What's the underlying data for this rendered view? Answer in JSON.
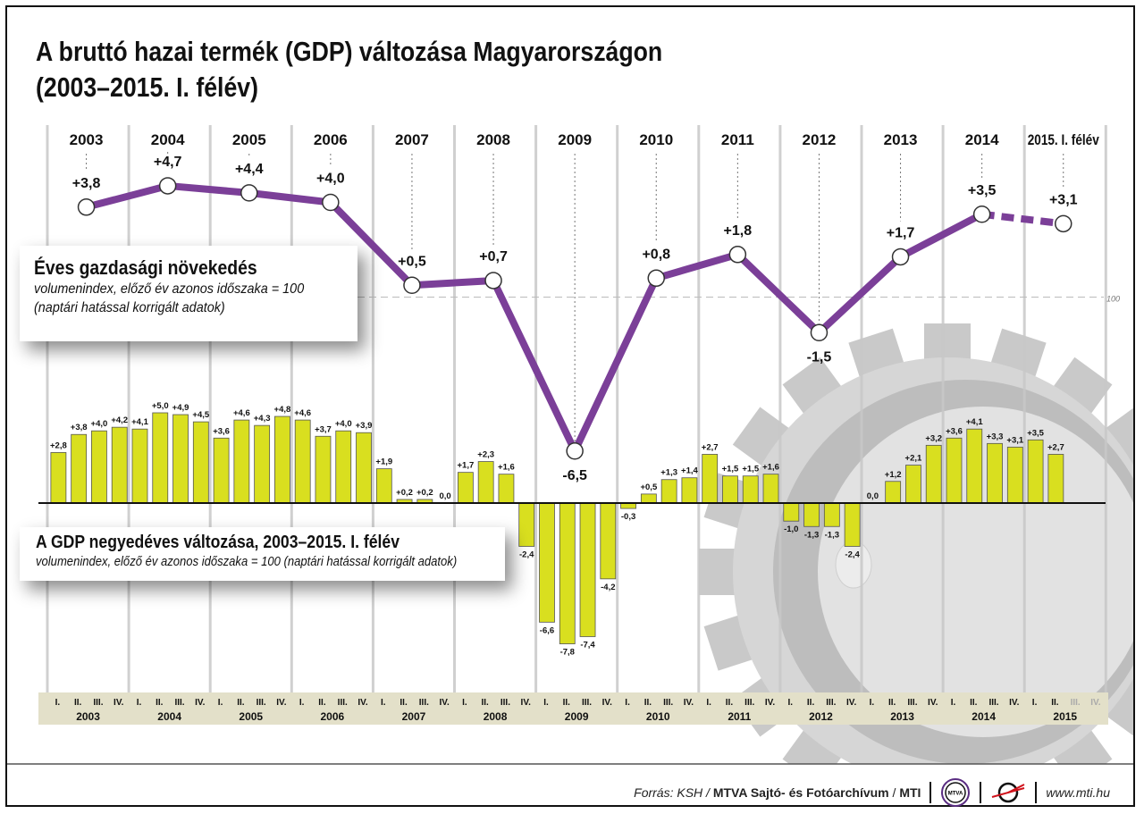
{
  "title_line1": "A bruttó hazai termék (GDP) változása Magyarországon",
  "title_line2": "(2003–2015. I. félév)",
  "annual_box": {
    "heading": "Éves gazdasági növekedés",
    "sub1": "volumenindex, előző év azonos időszaka = 100",
    "sub2": "(naptári hatással korrigált adatok)"
  },
  "quarterly_box": {
    "heading": "A GDP negyedéves változása, 2003–2015. I. félév",
    "sub": "volumenindex, előző év azonos időszaka = 100 (naptári hatással korrigált adatok)"
  },
  "reference_label": "100",
  "footer": {
    "source_prefix": "Forrás: KSH / ",
    "source_bold": "MTVA Sajtó- és Fotóarchívum",
    "source_sep": " / ",
    "source_mti": "MTI",
    "logo1_text": "MTVA",
    "url": "www.mti.hu"
  },
  "colors": {
    "line": "#7b3f98",
    "bar": "#d9df1f",
    "axis_band": "#e3e0c9",
    "grid": "#c8c8c8",
    "gear": "#d0d0d0"
  },
  "chart_data": [
    {
      "type": "line",
      "title": "Éves gazdasági növekedés",
      "categories": [
        "2003",
        "2004",
        "2005",
        "2006",
        "2007",
        "2008",
        "2009",
        "2010",
        "2011",
        "2012",
        "2013",
        "2014",
        "2015. I. félév"
      ],
      "values": [
        3.8,
        4.7,
        4.4,
        4.0,
        0.5,
        0.7,
        -6.5,
        0.8,
        1.8,
        -1.5,
        1.7,
        3.5,
        3.1
      ],
      "labels": [
        "+3,8",
        "+4,7",
        "+4,4",
        "+4,0",
        "+0,5",
        "+0,7",
        "-6,5",
        "+0,8",
        "+1,8",
        "-1,5",
        "+1,7",
        "+3,5",
        "+3,1"
      ],
      "last_segment_dashed": true,
      "reference_line": 0
    },
    {
      "type": "bar",
      "title": "A GDP negyedéves változása, 2003–2015. I. félév",
      "quarter_labels": [
        "I.",
        "II.",
        "III.",
        "IV."
      ],
      "years": [
        "2003",
        "2004",
        "2005",
        "2006",
        "2007",
        "2008",
        "2009",
        "2010",
        "2011",
        "2012",
        "2013",
        "2014",
        "2015"
      ],
      "values": [
        [
          2.8,
          3.8,
          4.0,
          4.2
        ],
        [
          4.1,
          5.0,
          4.9,
          4.5
        ],
        [
          3.6,
          4.6,
          4.3,
          4.8
        ],
        [
          4.6,
          3.7,
          4.0,
          3.9
        ],
        [
          1.9,
          0.2,
          0.2,
          0.0
        ],
        [
          1.7,
          2.3,
          1.6,
          -2.4
        ],
        [
          -6.6,
          -7.8,
          -7.4,
          -4.2
        ],
        [
          -0.3,
          0.5,
          1.3,
          1.4
        ],
        [
          2.7,
          1.5,
          1.5,
          1.6
        ],
        [
          -1.0,
          -1.3,
          -1.3,
          -2.4
        ],
        [
          0.0,
          1.2,
          2.1,
          3.2
        ],
        [
          3.6,
          4.1,
          3.3,
          3.1
        ],
        [
          3.5,
          2.7
        ]
      ],
      "labels": [
        [
          "+2,8",
          "+3,8",
          "+4,0",
          "+4,2"
        ],
        [
          "+4,1",
          "+5,0",
          "+4,9",
          "+4,5"
        ],
        [
          "+3,6",
          "+4,6",
          "+4,3",
          "+4,8"
        ],
        [
          "+4,6",
          "+3,7",
          "+4,0",
          "+3,9"
        ],
        [
          "+1,9",
          "+0,2",
          "+0,2",
          "0,0"
        ],
        [
          "+1,7",
          "+2,3",
          "+1,6",
          "-2,4"
        ],
        [
          "-6,6",
          "-7,8",
          "-7,4",
          "-4,2"
        ],
        [
          "-0,3",
          "+0,5",
          "+1,3",
          "+1,4"
        ],
        [
          "+2,7",
          "+1,5",
          "+1,5",
          "+1,6"
        ],
        [
          "-1,0",
          "-1,3",
          "-1,3",
          "-2,4"
        ],
        [
          "0,0",
          "+1,2",
          "+2,1",
          "+3,2"
        ],
        [
          "+3,6",
          "+4,1",
          "+3,3",
          "+3,1"
        ],
        [
          "+3,5",
          "+2,7"
        ]
      ]
    }
  ]
}
